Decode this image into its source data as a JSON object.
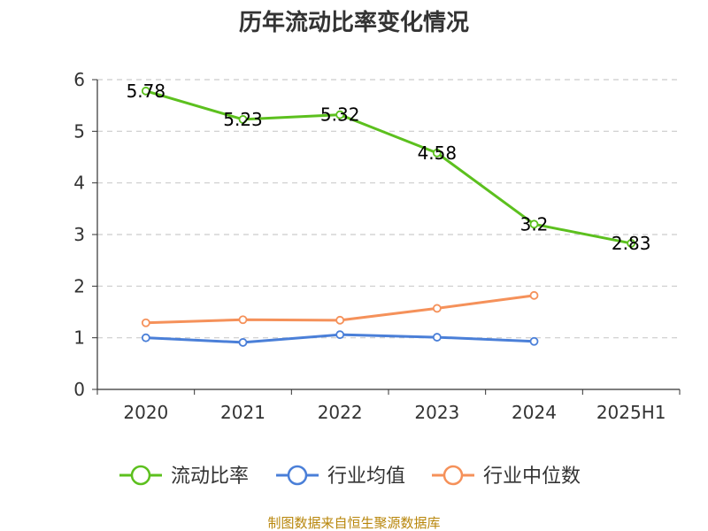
{
  "chart_data": {
    "type": "line",
    "title": "历年流动比率变化情况",
    "categories": [
      "2020",
      "2021",
      "2022",
      "2023",
      "2024",
      "2025H1"
    ],
    "ylim": [
      0,
      6
    ],
    "yticks": [
      "0",
      "1",
      "2",
      "3",
      "4",
      "5",
      "6"
    ],
    "grid": true,
    "legend_position": "bottom",
    "series": [
      {
        "name": "流动比率",
        "color": "#5cc01e",
        "values": [
          5.78,
          5.23,
          5.32,
          4.58,
          3.2,
          2.83
        ],
        "labels": [
          "5.78",
          "5.23",
          "5.32",
          "4.58",
          "3.2",
          "2.83"
        ]
      },
      {
        "name": "行业均值",
        "color": "#4a7fd8",
        "values": [
          1.0,
          0.91,
          1.06,
          1.01,
          0.93,
          null
        ]
      },
      {
        "name": "行业中位数",
        "color": "#f5915a",
        "values": [
          1.29,
          1.35,
          1.34,
          1.57,
          1.82,
          null
        ]
      }
    ]
  },
  "source_text": "制图数据来自恒生聚源数据库"
}
